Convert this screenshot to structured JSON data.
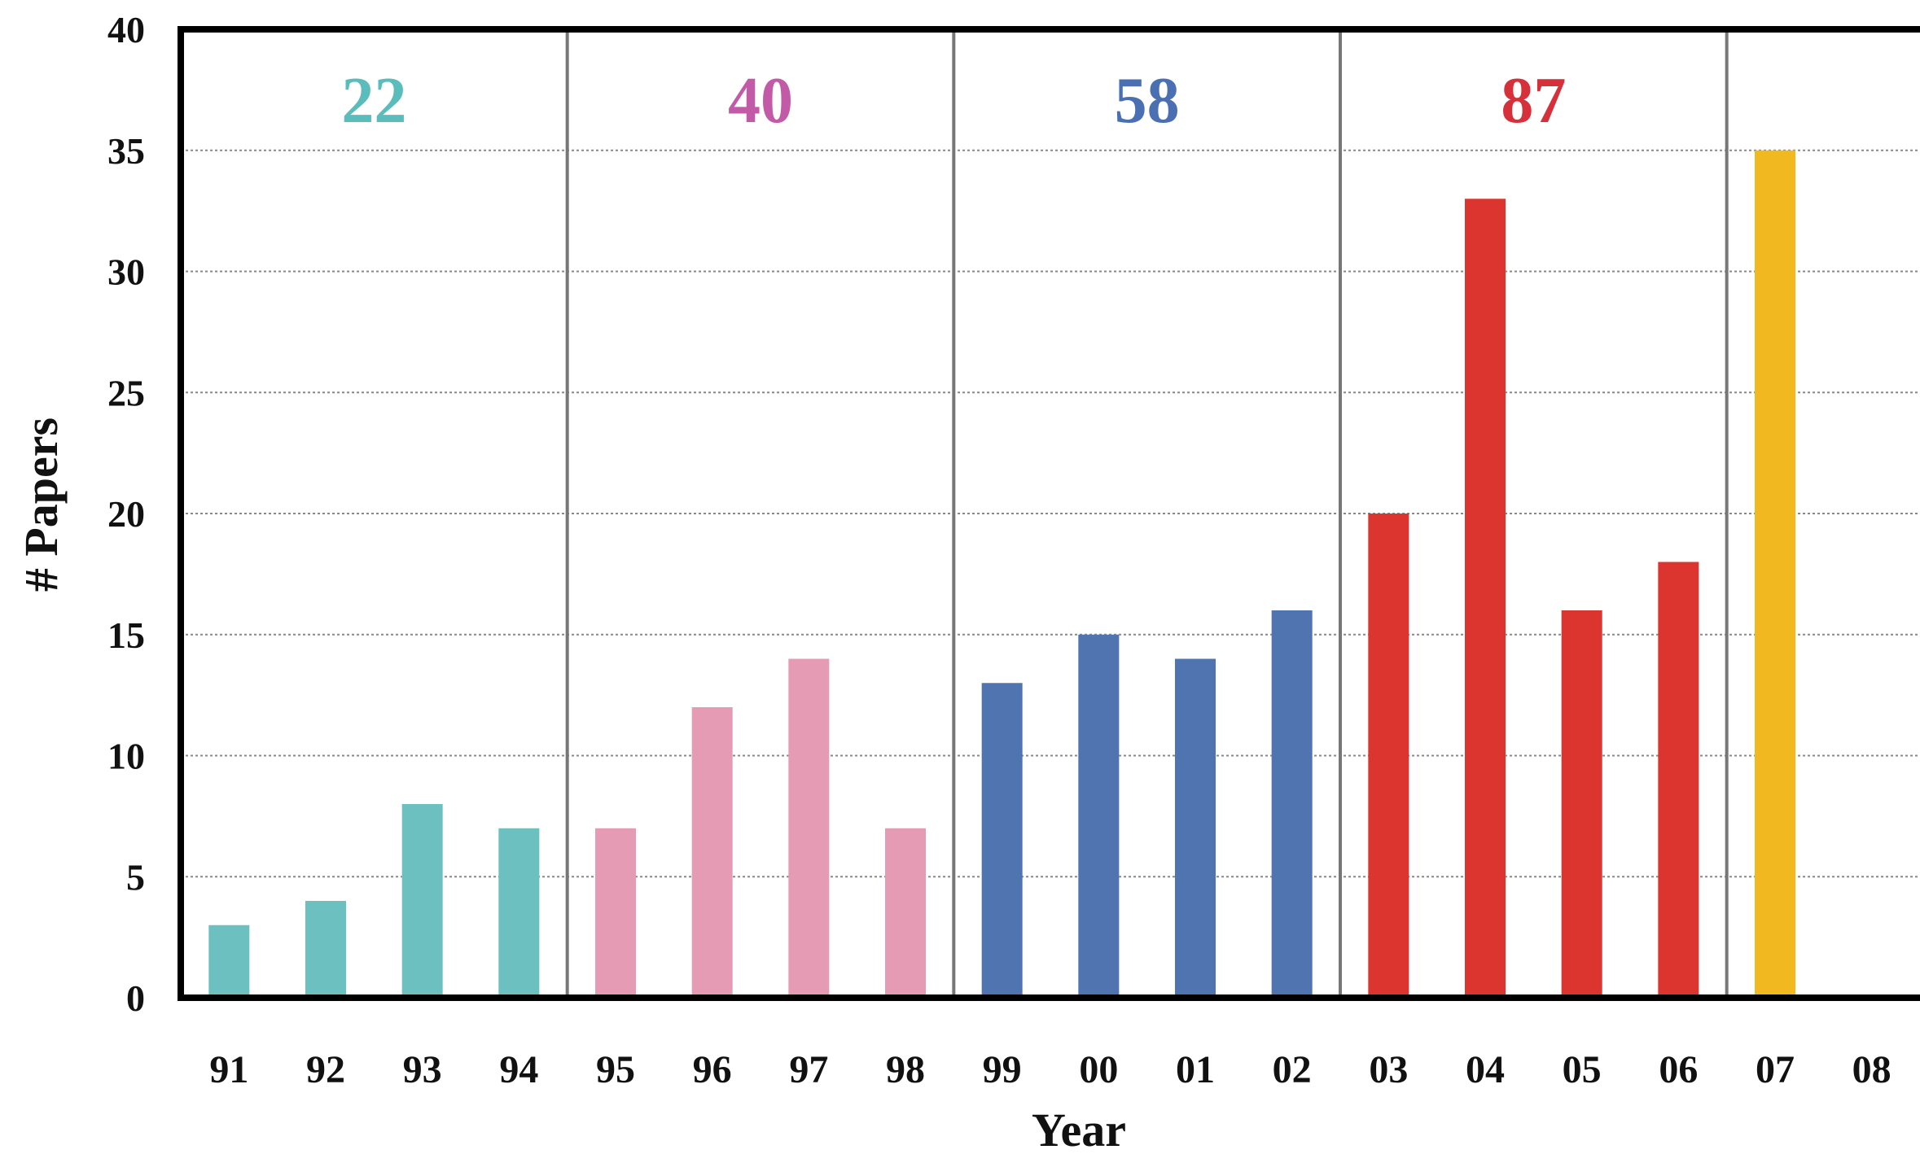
{
  "chart_data": {
    "type": "bar",
    "xlabel": "Year",
    "ylabel": "# Papers",
    "ylim": [
      0,
      40
    ],
    "yticks": [
      0,
      5,
      10,
      15,
      20,
      25,
      30,
      35,
      40
    ],
    "grid": "horizontal dotted",
    "categories": [
      "91",
      "92",
      "93",
      "94",
      "95",
      "96",
      "97",
      "98",
      "99",
      "00",
      "01",
      "02",
      "03",
      "04",
      "05",
      "06",
      "07",
      "08"
    ],
    "values": [
      3,
      4,
      8,
      7,
      7,
      12,
      14,
      7,
      13,
      15,
      14,
      16,
      20,
      33,
      16,
      18,
      35,
      0
    ],
    "groups": [
      {
        "total": "22",
        "start": 0,
        "end": 3,
        "bar_color": "#6cc0c0",
        "label_color": "#5bbcbc"
      },
      {
        "total": "40",
        "start": 4,
        "end": 7,
        "bar_color": "#e69bb5",
        "label_color": "#c35aa8"
      },
      {
        "total": "58",
        "start": 8,
        "end": 11,
        "bar_color": "#4f74b0",
        "label_color": "#4a70b3"
      },
      {
        "total": "87",
        "start": 12,
        "end": 15,
        "bar_color": "#dc3530",
        "label_color": "#d6303a"
      },
      {
        "total": "",
        "start": 16,
        "end": 17,
        "bar_color": "#f2b820",
        "label_color": "#f2b820"
      }
    ]
  }
}
